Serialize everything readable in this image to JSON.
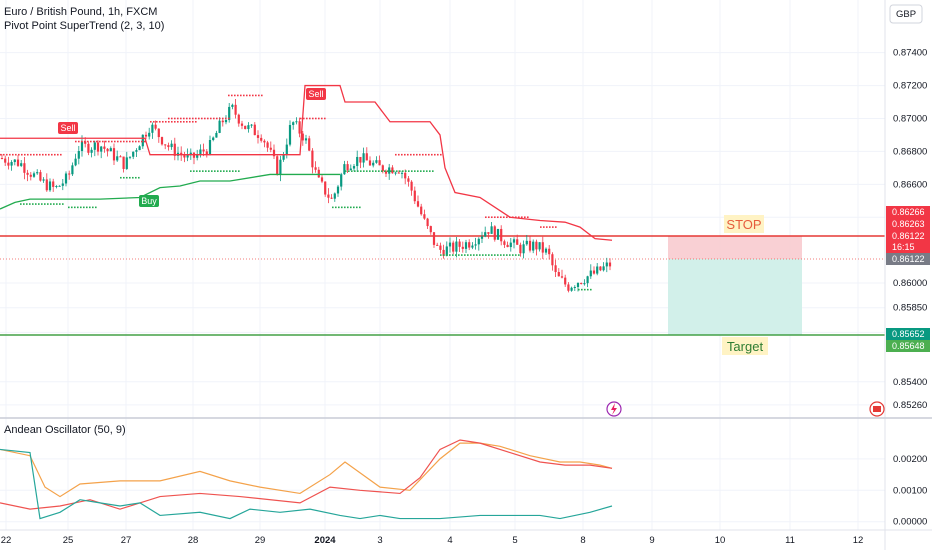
{
  "header": {
    "symbol": "Euro / British Pound, 1h, FXCM",
    "indicator": "Pivot Point SuperTrend (2, 3, 10)",
    "oscillator": "Andean Oscillator (50, 9)",
    "currency": "GBP"
  },
  "annotations": {
    "stop": "STOP",
    "target": "Target",
    "sell1": "Sell",
    "sell2": "Sell",
    "buy": "Buy"
  },
  "price_tags": [
    {
      "value": "0.86266",
      "color": "#f23645"
    },
    {
      "value": "0.86263",
      "color": "#f23645"
    },
    {
      "value": "0.86122",
      "color": "#f23645"
    },
    {
      "value": "16:15",
      "color": "#f23645"
    },
    {
      "value": "0.86122",
      "color": "#787b86"
    },
    {
      "value": "0.85652",
      "color": "#089981"
    },
    {
      "value": "0.85648",
      "color": "#4caf50"
    }
  ],
  "chart_data": {
    "type": "candlestick",
    "y_ticks": [
      "0.87400",
      "0.87200",
      "0.87000",
      "0.86800",
      "0.86600",
      "0.86400",
      "0.86000",
      "0.85850",
      "0.85700",
      "0.85400",
      "0.85260"
    ],
    "x_ticks": [
      "22",
      "25",
      "27",
      "28",
      "29",
      "2024",
      "3",
      "4",
      "5",
      "8",
      "9",
      "10",
      "11",
      "12"
    ],
    "ylim": [
      0.8518,
      0.8772
    ],
    "stop_level": 0.86266,
    "entry_level": 0.86122,
    "target_level": 0.85652,
    "supertrend_red": [
      [
        0,
        0.8688
      ],
      [
        68,
        0.8688
      ],
      [
        145,
        0.8688
      ],
      [
        150,
        0.8678
      ],
      [
        160,
        0.8678
      ],
      [
        300,
        0.8678
      ],
      [
        305,
        0.872
      ],
      [
        340,
        0.872
      ],
      [
        345,
        0.871
      ],
      [
        375,
        0.871
      ],
      [
        390,
        0.8698
      ],
      [
        430,
        0.8698
      ],
      [
        440,
        0.869
      ],
      [
        445,
        0.867
      ],
      [
        455,
        0.8655
      ],
      [
        480,
        0.8652
      ],
      [
        510,
        0.864
      ],
      [
        540,
        0.8638
      ],
      [
        565,
        0.8637
      ],
      [
        580,
        0.8634
      ],
      [
        595,
        0.8627
      ],
      [
        612,
        0.8626
      ]
    ],
    "supertrend_green": [
      [
        0,
        0.8645
      ],
      [
        15,
        0.8649
      ],
      [
        30,
        0.8651
      ],
      [
        60,
        0.8651
      ],
      [
        68,
        0.8651
      ],
      [
        100,
        0.8651
      ],
      [
        140,
        0.8652
      ],
      [
        160,
        0.8658
      ],
      [
        180,
        0.8659
      ],
      [
        200,
        0.8662
      ],
      [
        230,
        0.8662
      ],
      [
        270,
        0.8666
      ],
      [
        310,
        0.8666
      ],
      [
        340,
        0.8666
      ]
    ],
    "oscillator_ticks": [
      "0.00200",
      "0.00100",
      "0.00000"
    ],
    "oscillator_ylim": [
      -0.0002,
      0.0026
    ],
    "oscillator_series": [
      {
        "color": "#f4a24a",
        "points": [
          [
            0,
            0.0023
          ],
          [
            30,
            0.0021
          ],
          [
            45,
            0.0011
          ],
          [
            60,
            0.0008
          ],
          [
            80,
            0.0012
          ],
          [
            120,
            0.0013
          ],
          [
            160,
            0.0013
          ],
          [
            200,
            0.0016
          ],
          [
            230,
            0.0013
          ],
          [
            260,
            0.0011
          ],
          [
            300,
            0.0009
          ],
          [
            330,
            0.0015
          ],
          [
            345,
            0.0019
          ],
          [
            380,
            0.0011
          ],
          [
            410,
            0.001
          ],
          [
            440,
            0.002
          ],
          [
            460,
            0.0025
          ],
          [
            480,
            0.0025
          ],
          [
            500,
            0.0024
          ],
          [
            530,
            0.0021
          ],
          [
            560,
            0.0019
          ],
          [
            580,
            0.0019
          ],
          [
            600,
            0.0018
          ],
          [
            612,
            0.0017
          ]
        ]
      },
      {
        "color": "#ef5350",
        "points": [
          [
            0,
            0.0006
          ],
          [
            30,
            0.0004
          ],
          [
            60,
            0.0005
          ],
          [
            90,
            0.0007
          ],
          [
            120,
            0.0004
          ],
          [
            160,
            0.0008
          ],
          [
            200,
            0.0009
          ],
          [
            240,
            0.0008
          ],
          [
            300,
            0.0006
          ],
          [
            330,
            0.0011
          ],
          [
            360,
            0.001
          ],
          [
            400,
            0.0009
          ],
          [
            420,
            0.0014
          ],
          [
            440,
            0.0023
          ],
          [
            460,
            0.0026
          ],
          [
            480,
            0.0025
          ],
          [
            510,
            0.0022
          ],
          [
            540,
            0.0019
          ],
          [
            565,
            0.0018
          ],
          [
            590,
            0.0018
          ],
          [
            612,
            0.0017
          ]
        ]
      },
      {
        "color": "#26a69a",
        "points": [
          [
            0,
            0.0023
          ],
          [
            30,
            0.0022
          ],
          [
            40,
            0.0001
          ],
          [
            60,
            0.0003
          ],
          [
            80,
            0.0007
          ],
          [
            100,
            0.0006
          ],
          [
            120,
            0.0005
          ],
          [
            140,
            0.0006
          ],
          [
            160,
            0.0002
          ],
          [
            200,
            0.0003
          ],
          [
            230,
            0.0001
          ],
          [
            250,
            0.0004
          ],
          [
            280,
            0.0003
          ],
          [
            310,
            0.0004
          ],
          [
            340,
            0.0002
          ],
          [
            360,
            0.0001
          ],
          [
            380,
            0.0002
          ],
          [
            400,
            0.0001
          ],
          [
            440,
            0.0001
          ],
          [
            480,
            0.0002
          ],
          [
            520,
            0.0002
          ],
          [
            540,
            0.0002
          ],
          [
            560,
            0.0001
          ],
          [
            590,
            0.0003
          ],
          [
            612,
            0.0005
          ]
        ]
      }
    ]
  }
}
